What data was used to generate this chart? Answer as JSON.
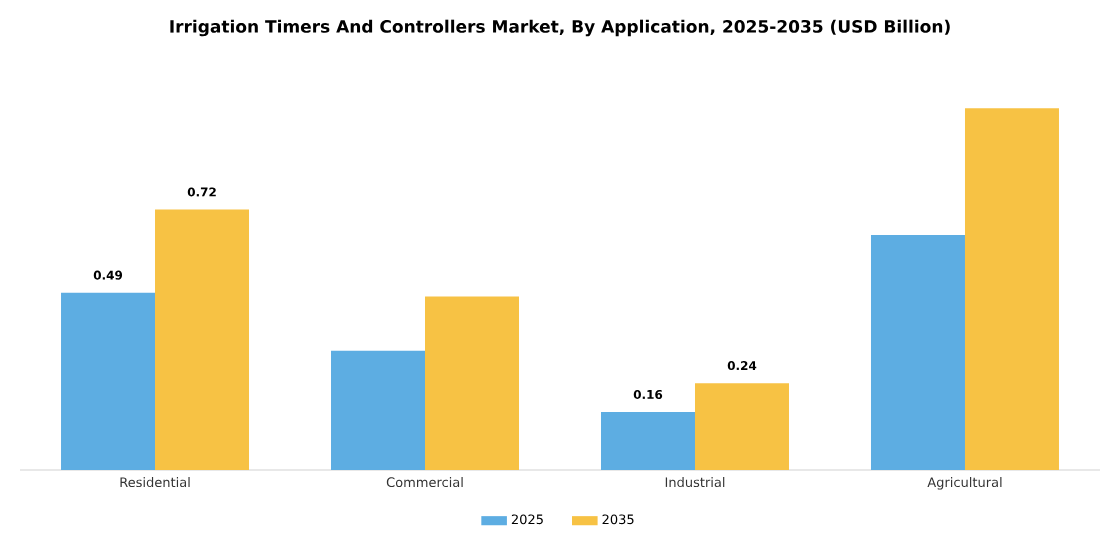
{
  "chart_data": {
    "type": "bar",
    "title": "Irrigation Timers And Controllers Market, By Application, 2025-2035 (USD Billion)",
    "categories": [
      "Residential",
      "Commercial",
      "Industrial",
      "Agricultural"
    ],
    "series": [
      {
        "name": "2025",
        "color": "#5dade2",
        "values": [
          0.49,
          0.33,
          0.16,
          0.65
        ],
        "value_labels": [
          "0.49",
          null,
          "0.16",
          null
        ]
      },
      {
        "name": "2035",
        "color": "#f7c244",
        "values": [
          0.72,
          0.48,
          0.24,
          1.0
        ],
        "value_labels": [
          "0.72",
          null,
          "0.24",
          null
        ]
      }
    ],
    "legend": "bottom"
  }
}
